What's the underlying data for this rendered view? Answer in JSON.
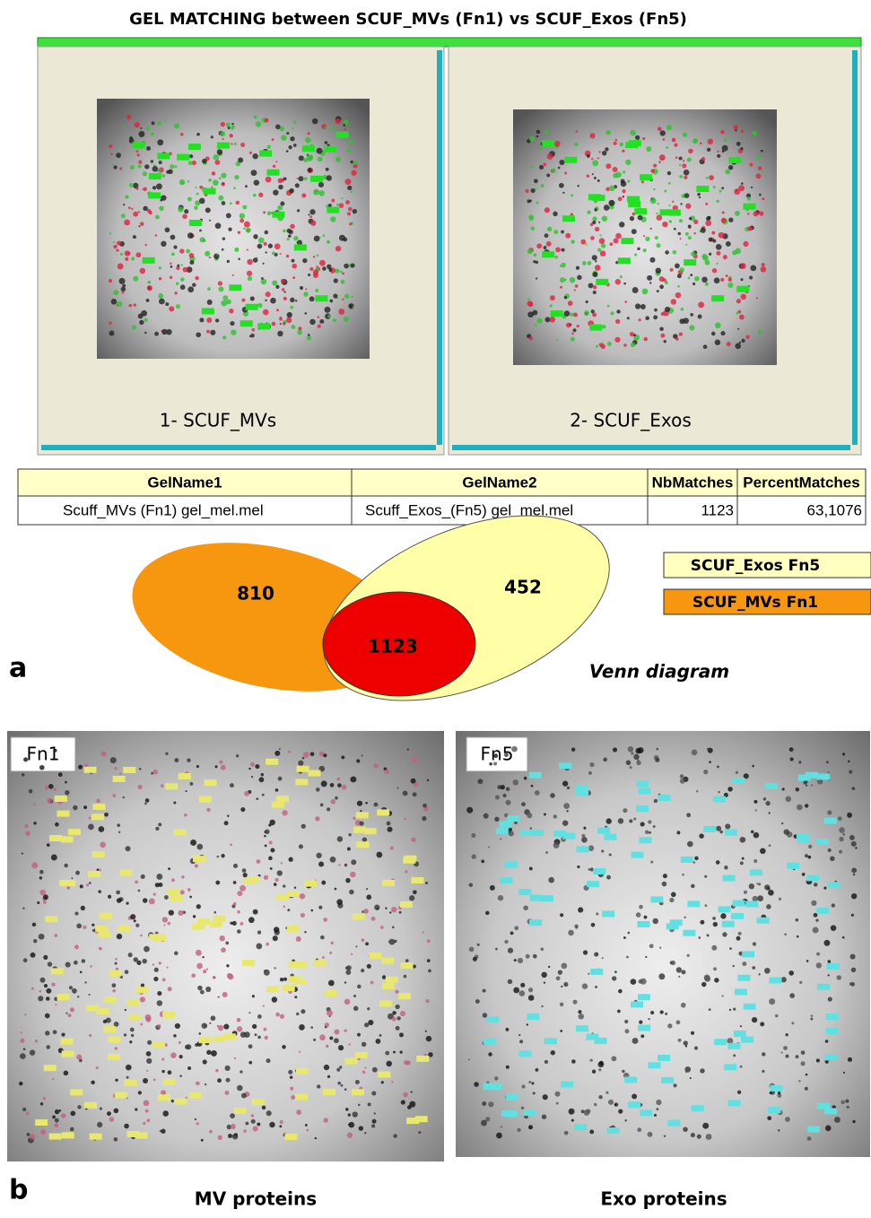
{
  "header": {
    "title": "GEL  MATCHING between  SCUF_MVs (Fn1) vs SCUF_Exos (Fn5)"
  },
  "panel_a": {
    "label": "a",
    "gels": [
      {
        "label": "1- SCUF_MVs"
      },
      {
        "label": "2- SCUF_Exos"
      }
    ],
    "table": {
      "columns": [
        "GelName1",
        "GelName2",
        "NbMatches",
        "PercentMatches"
      ],
      "rows": [
        [
          "Scuff_MVs  (Fn1) gel_mel.mel",
          "Scuff_Exos_(Fn5) gel_mel.mel",
          "1123",
          "63,1076"
        ]
      ]
    },
    "venn": {
      "left": "810",
      "right": "452",
      "overlap": "1123",
      "caption": "Venn diagram"
    },
    "legend": [
      "SCUF_Exos Fn5",
      "SCUF_MVs Fn1"
    ]
  },
  "panel_b": {
    "label": "b",
    "gels": [
      {
        "tag": "Fn1",
        "caption": "MV proteins"
      },
      {
        "tag": "Fn5",
        "caption": "Exo proteins"
      }
    ]
  }
}
